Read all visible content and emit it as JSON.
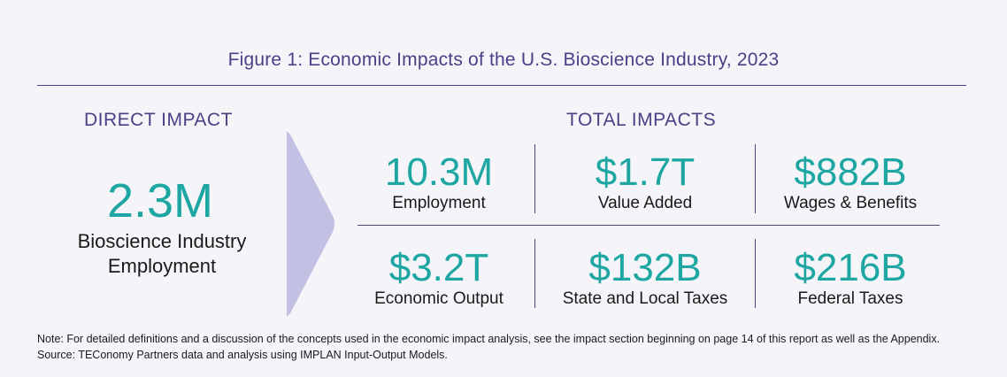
{
  "title": "Figure 1: Economic Impacts of the U.S. Bioscience Industry, 2023",
  "direct": {
    "heading": "DIRECT IMPACT",
    "value": "2.3M",
    "label_line1": "Bioscience Industry",
    "label_line2": "Employment"
  },
  "total": {
    "heading": "TOTAL IMPACTS",
    "metrics": [
      {
        "value": "10.3M",
        "label": "Employment"
      },
      {
        "value": "$1.7T",
        "label": "Value Added"
      },
      {
        "value": "$882B",
        "label": "Wages & Benefits"
      },
      {
        "value": "$3.2T",
        "label": "Economic Output"
      },
      {
        "value": "$132B",
        "label": "State and Local Taxes"
      },
      {
        "value": "$216B",
        "label": "Federal Taxes"
      }
    ]
  },
  "notes": {
    "note": "Note: For detailed definitions and a discussion of the concepts used in the economic impact analysis, see the impact section beginning on page 14 of this report as well as the Appendix.",
    "source": "Source: TEConomy Partners data and analysis using IMPLAN Input-Output Models."
  },
  "colors": {
    "accent_purple": "#4b3f86",
    "value_teal": "#1ea7a2",
    "arrow_lavender": "#c3c1e3"
  }
}
